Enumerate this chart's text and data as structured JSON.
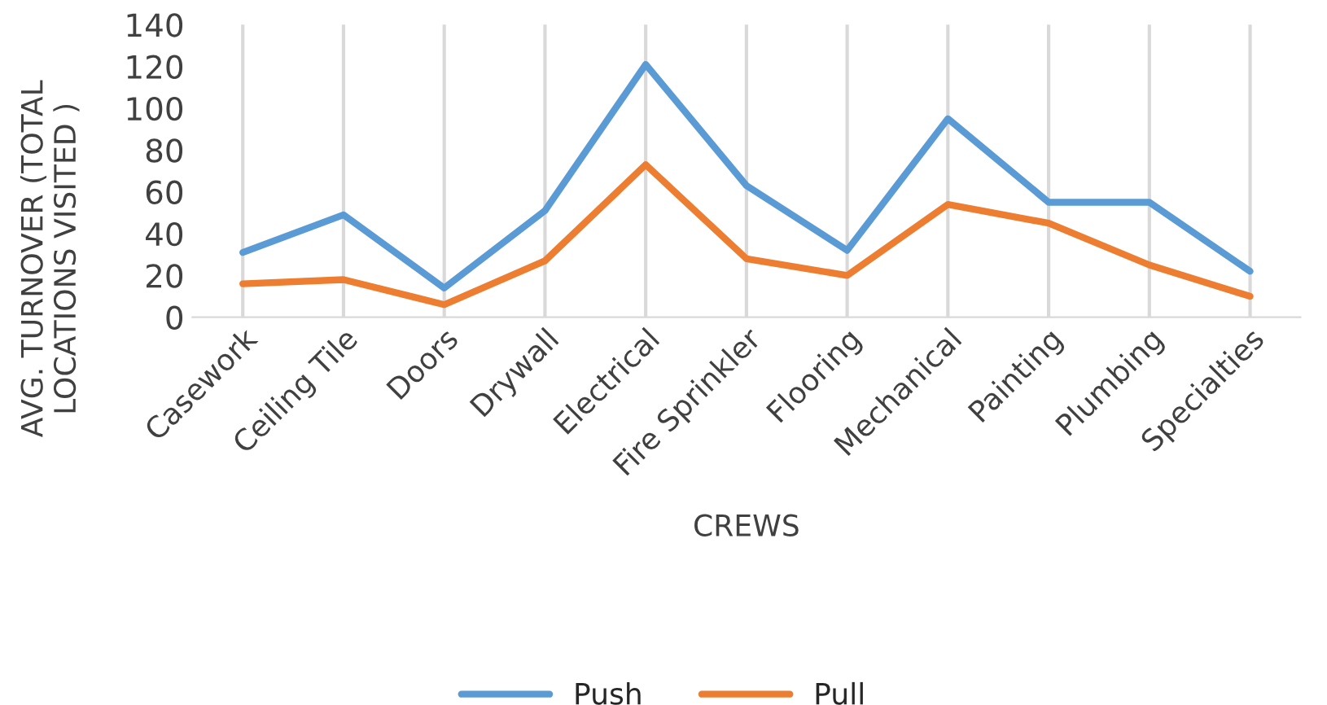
{
  "chart_data": {
    "type": "line",
    "xlabel": "CREWS",
    "ylabel": "AVG. TURNOVER (TOTAL LOCATIONS VISITED )",
    "categories": [
      "Casework",
      "Ceiling Tile",
      "Doors",
      "Drywall",
      "Electrical",
      "Fire Sprinkler",
      "Flooring",
      "Mechanical",
      "Painting",
      "Plumbing",
      "Specialties"
    ],
    "series": [
      {
        "name": "Push",
        "color": "#5b9bd5",
        "values": [
          31,
          49,
          14,
          51,
          121,
          63,
          32,
          95,
          55,
          55,
          22
        ]
      },
      {
        "name": "Pull",
        "color": "#ed7d31",
        "values": [
          16,
          18,
          6,
          27,
          73,
          28,
          20,
          54,
          45,
          25,
          10
        ]
      }
    ],
    "ylim": [
      0,
      140
    ],
    "yticks": [
      0,
      20,
      40,
      60,
      80,
      100,
      120,
      140
    ],
    "grid": "x",
    "legend": "bottom",
    "marker": "none",
    "line_style": "solid"
  }
}
